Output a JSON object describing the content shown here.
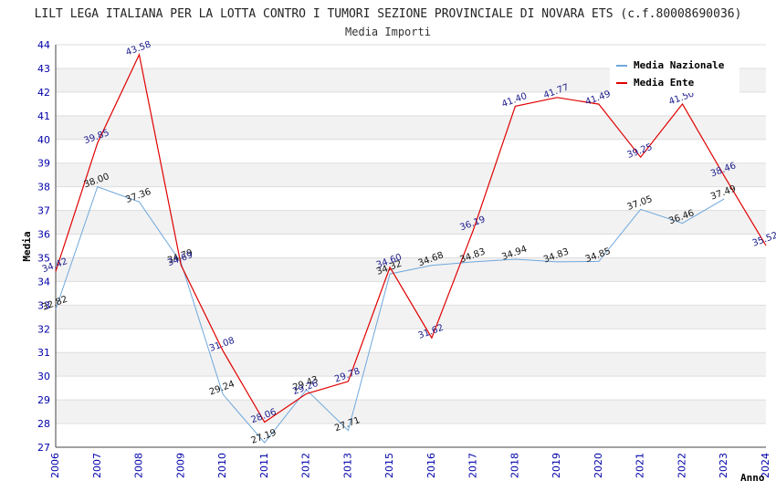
{
  "chart_data": {
    "type": "line",
    "title": "LILT LEGA ITALIANA PER LA LOTTA CONTRO I TUMORI SEZIONE PROVINCIALE DI NOVARA ETS (c.f.80008690036)",
    "subtitle": "Media Importi",
    "xlabel": "Anno",
    "ylabel": "Media",
    "ylim": [
      27,
      44
    ],
    "yticks": [
      "27",
      "28",
      "29",
      "30",
      "31",
      "32",
      "33",
      "34",
      "35",
      "36",
      "37",
      "38",
      "39",
      "40",
      "41",
      "42",
      "43",
      "44"
    ],
    "categories": [
      "2006",
      "2007",
      "2008",
      "2009",
      "2010",
      "2011",
      "2012",
      "2013",
      "2015",
      "2016",
      "2017",
      "2018",
      "2019",
      "2020",
      "2021",
      "2022",
      "2023",
      "2024"
    ],
    "legend_position": "top-right",
    "grid": true,
    "series": [
      {
        "name": "Media Nazionale",
        "color": "#6fa8dc",
        "values": [
          32.82,
          38.0,
          37.36,
          34.79,
          29.24,
          27.19,
          29.43,
          27.71,
          34.32,
          34.68,
          34.83,
          34.94,
          34.83,
          34.85,
          37.05,
          36.46,
          37.49,
          null
        ],
        "labels": [
          "32.82",
          "38.00",
          "37.36",
          "34.79",
          "29.24",
          "27.19",
          "29.43",
          "27.71",
          "34.32",
          "34.68",
          "34.83",
          "34.94",
          "34.83",
          "34.85",
          "37.05",
          "36.46",
          "37.49",
          ""
        ]
      },
      {
        "name": "Media Ente",
        "color": "#e00000",
        "values": [
          34.42,
          39.85,
          43.58,
          34.69,
          31.08,
          28.06,
          29.26,
          29.78,
          34.6,
          31.62,
          36.19,
          41.4,
          41.77,
          41.49,
          39.25,
          41.5,
          38.46,
          35.52
        ],
        "labels": [
          "34.42",
          "39.85",
          "43.58",
          "34.69",
          "31.08",
          "28.06",
          "29.26",
          "29.78",
          "34.60",
          "31.62",
          "36.19",
          "41.40",
          "41.77",
          "41.49",
          "39.25",
          "41.50",
          "38.46",
          "35.52"
        ]
      }
    ]
  }
}
